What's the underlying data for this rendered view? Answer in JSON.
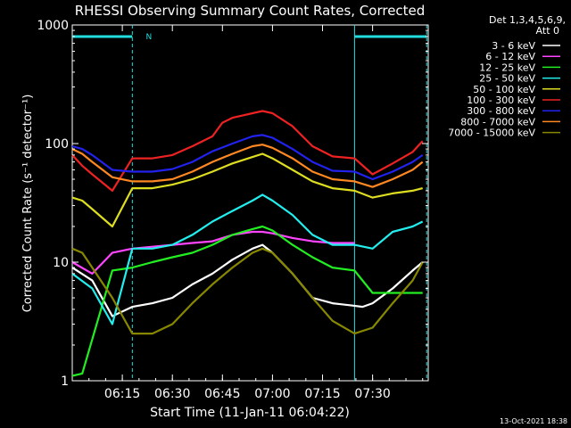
{
  "chart_data": {
    "type": "line",
    "title": "RHESSI Observing Summary Count Rates, Corrected",
    "xlabel": "Start Time (11-Jan-11 06:04:22)",
    "ylabel": "Corrected Count Rate (s⁻¹ detector⁻¹)",
    "yscale": "log",
    "ylim": [
      1,
      1000
    ],
    "xlim_minutes": [
      6.0,
      7.778
    ],
    "x_tick_labels": [
      "06:15",
      "06:30",
      "06:45",
      "07:00",
      "07:15",
      "07:30"
    ],
    "x_tick_minutes": [
      6.25,
      6.5,
      6.75,
      7.0,
      7.25,
      7.5
    ],
    "y_tick_labels": [
      "1",
      "10",
      "100",
      "1000"
    ],
    "y_tick_values": [
      1,
      10,
      100,
      1000
    ],
    "legend_header": [
      "Det 1,3,4,5,6,9,",
      "Att 0"
    ],
    "legend_placement": "right",
    "footer_date": "13-Oct-2021 18:38",
    "annotations": [
      {
        "text": "N",
        "x": 6.35
      }
    ],
    "night_intervals": [
      {
        "start": 6.0,
        "end": 6.3
      },
      {
        "start": 7.41,
        "end": 7.77
      }
    ],
    "series": [
      {
        "name": "3 - 6 keV",
        "color": "#ffffff",
        "points": [
          [
            6.0,
            9
          ],
          [
            6.1,
            7
          ],
          [
            6.2,
            3.5
          ],
          [
            6.3,
            4.2
          ],
          [
            6.4,
            4.5
          ],
          [
            6.5,
            5
          ],
          [
            6.6,
            6.5
          ],
          [
            6.7,
            8
          ],
          [
            6.8,
            10.5
          ],
          [
            6.9,
            13
          ],
          [
            6.95,
            14
          ],
          [
            7.0,
            12
          ],
          [
            7.1,
            8
          ],
          [
            7.2,
            5
          ],
          [
            7.3,
            4.5
          ],
          [
            7.4,
            4.3
          ],
          [
            7.45,
            4.2
          ],
          [
            7.5,
            4.5
          ],
          [
            7.6,
            6
          ],
          [
            7.7,
            8.5
          ],
          [
            7.75,
            10
          ]
        ]
      },
      {
        "name": "6 - 12 keV",
        "color": "#ff44ff",
        "points": [
          [
            6.0,
            10
          ],
          [
            6.1,
            8
          ],
          [
            6.2,
            12
          ],
          [
            6.3,
            13
          ],
          [
            6.4,
            13.5
          ],
          [
            6.5,
            14
          ],
          [
            6.6,
            14.5
          ],
          [
            6.7,
            15
          ],
          [
            6.8,
            17
          ],
          [
            6.9,
            18
          ],
          [
            6.95,
            18
          ],
          [
            7.0,
            17.5
          ],
          [
            7.1,
            16
          ],
          [
            7.2,
            15
          ],
          [
            7.3,
            14.5
          ],
          [
            7.41,
            14.5
          ]
        ]
      },
      {
        "name": "12 - 25 keV",
        "color": "#22ee22",
        "points": [
          [
            6.0,
            1.1
          ],
          [
            6.05,
            1.15
          ],
          [
            6.2,
            8.5
          ],
          [
            6.3,
            9
          ],
          [
            6.4,
            10
          ],
          [
            6.5,
            11
          ],
          [
            6.6,
            12
          ],
          [
            6.7,
            14
          ],
          [
            6.8,
            17
          ],
          [
            6.9,
            19
          ],
          [
            6.95,
            20
          ],
          [
            7.0,
            18.5
          ],
          [
            7.1,
            14
          ],
          [
            7.2,
            11
          ],
          [
            7.3,
            9
          ],
          [
            7.41,
            8.5
          ],
          [
            7.5,
            5.5
          ],
          [
            7.6,
            5.5
          ],
          [
            7.7,
            5.5
          ],
          [
            7.75,
            5.5
          ]
        ]
      },
      {
        "name": "25 - 50 keV",
        "color": "#22eeee",
        "points": [
          [
            6.0,
            8
          ],
          [
            6.1,
            6
          ],
          [
            6.2,
            3
          ],
          [
            6.3,
            13
          ],
          [
            6.4,
            13
          ],
          [
            6.5,
            14
          ],
          [
            6.6,
            17
          ],
          [
            6.7,
            22
          ],
          [
            6.8,
            27
          ],
          [
            6.9,
            33
          ],
          [
            6.95,
            37
          ],
          [
            7.0,
            33
          ],
          [
            7.1,
            25
          ],
          [
            7.2,
            17
          ],
          [
            7.3,
            14
          ],
          [
            7.41,
            14
          ],
          [
            7.5,
            13
          ],
          [
            7.6,
            18
          ],
          [
            7.7,
            20
          ],
          [
            7.75,
            22
          ]
        ]
      },
      {
        "name": "50 - 100 keV",
        "color": "#dddd22",
        "points": [
          [
            6.0,
            35
          ],
          [
            6.05,
            33
          ],
          [
            6.1,
            28
          ],
          [
            6.2,
            20
          ],
          [
            6.3,
            42
          ],
          [
            6.4,
            42
          ],
          [
            6.5,
            45
          ],
          [
            6.6,
            50
          ],
          [
            6.7,
            58
          ],
          [
            6.8,
            68
          ],
          [
            6.9,
            77
          ],
          [
            6.95,
            82
          ],
          [
            7.0,
            75
          ],
          [
            7.1,
            60
          ],
          [
            7.2,
            48
          ],
          [
            7.3,
            42
          ],
          [
            7.41,
            40
          ],
          [
            7.5,
            35
          ],
          [
            7.6,
            38
          ],
          [
            7.7,
            40
          ],
          [
            7.75,
            42
          ]
        ]
      },
      {
        "name": "100 - 300 keV",
        "color": "#ee2222",
        "points": [
          [
            6.0,
            80
          ],
          [
            6.05,
            65
          ],
          [
            6.1,
            55
          ],
          [
            6.2,
            40
          ],
          [
            6.3,
            75
          ],
          [
            6.4,
            75
          ],
          [
            6.5,
            80
          ],
          [
            6.6,
            95
          ],
          [
            6.7,
            115
          ],
          [
            6.75,
            150
          ],
          [
            6.8,
            165
          ],
          [
            6.9,
            180
          ],
          [
            6.95,
            188
          ],
          [
            7.0,
            180
          ],
          [
            7.1,
            140
          ],
          [
            7.2,
            95
          ],
          [
            7.3,
            78
          ],
          [
            7.41,
            75
          ],
          [
            7.5,
            55
          ],
          [
            7.6,
            68
          ],
          [
            7.7,
            85
          ],
          [
            7.75,
            105
          ]
        ]
      },
      {
        "name": "300 - 800 keV",
        "color": "#2222ee",
        "points": [
          [
            6.0,
            95
          ],
          [
            6.05,
            90
          ],
          [
            6.1,
            80
          ],
          [
            6.2,
            60
          ],
          [
            6.3,
            58
          ],
          [
            6.4,
            58
          ],
          [
            6.5,
            61
          ],
          [
            6.6,
            70
          ],
          [
            6.7,
            86
          ],
          [
            6.8,
            100
          ],
          [
            6.9,
            115
          ],
          [
            6.95,
            118
          ],
          [
            7.0,
            112
          ],
          [
            7.1,
            90
          ],
          [
            7.2,
            70
          ],
          [
            7.3,
            59
          ],
          [
            7.41,
            58
          ],
          [
            7.5,
            50
          ],
          [
            7.6,
            58
          ],
          [
            7.7,
            70
          ],
          [
            7.75,
            80
          ]
        ]
      },
      {
        "name": "800 - 7000 keV",
        "color": "#ff8822",
        "points": [
          [
            6.0,
            90
          ],
          [
            6.05,
            82
          ],
          [
            6.1,
            70
          ],
          [
            6.2,
            52
          ],
          [
            6.3,
            48
          ],
          [
            6.4,
            48
          ],
          [
            6.5,
            50
          ],
          [
            6.6,
            58
          ],
          [
            6.7,
            70
          ],
          [
            6.8,
            82
          ],
          [
            6.9,
            95
          ],
          [
            6.95,
            98
          ],
          [
            7.0,
            92
          ],
          [
            7.1,
            75
          ],
          [
            7.2,
            58
          ],
          [
            7.3,
            50
          ],
          [
            7.41,
            48
          ],
          [
            7.5,
            43
          ],
          [
            7.6,
            50
          ],
          [
            7.7,
            60
          ],
          [
            7.75,
            70
          ]
        ]
      },
      {
        "name": "7000 - 15000 keV",
        "color": "#888800",
        "points": [
          [
            6.0,
            13
          ],
          [
            6.05,
            12
          ],
          [
            6.1,
            9
          ],
          [
            6.2,
            5
          ],
          [
            6.3,
            2.5
          ],
          [
            6.4,
            2.5
          ],
          [
            6.5,
            3
          ],
          [
            6.6,
            4.5
          ],
          [
            6.7,
            6.5
          ],
          [
            6.8,
            9
          ],
          [
            6.9,
            12
          ],
          [
            6.95,
            13
          ],
          [
            7.0,
            12
          ],
          [
            7.1,
            8
          ],
          [
            7.2,
            5
          ],
          [
            7.3,
            3.2
          ],
          [
            7.41,
            2.5
          ],
          [
            7.5,
            2.8
          ],
          [
            7.6,
            4.5
          ],
          [
            7.7,
            7
          ],
          [
            7.75,
            10
          ]
        ]
      }
    ]
  }
}
